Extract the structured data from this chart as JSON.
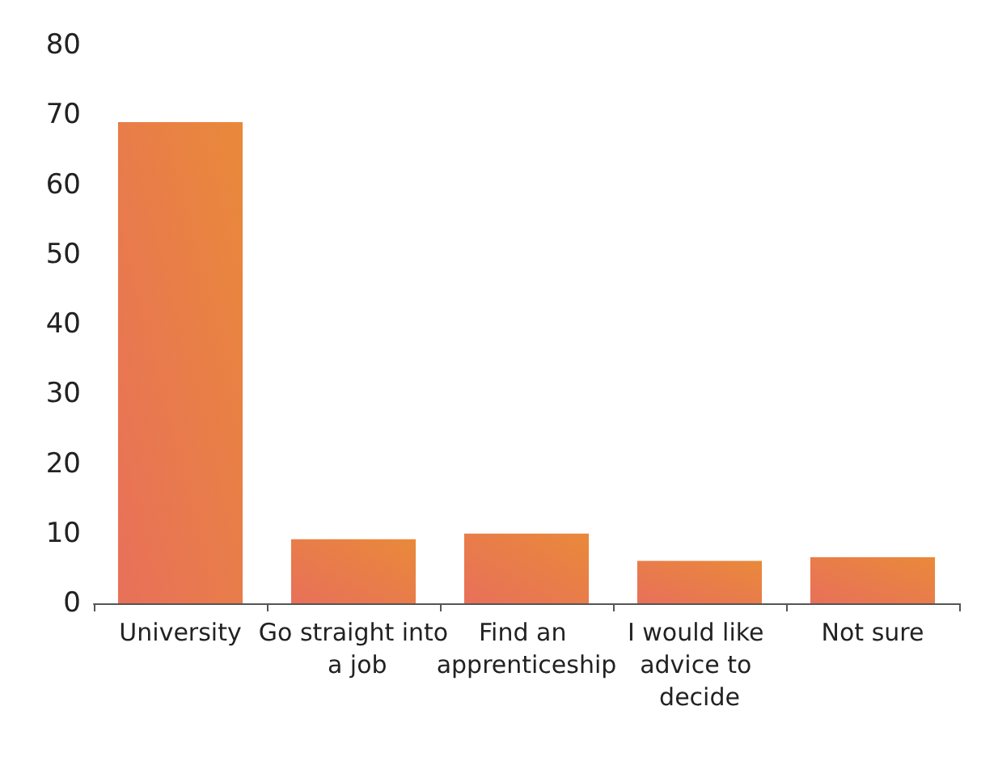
{
  "chart_data": {
    "type": "bar",
    "categories": [
      "University",
      "Go straight into a job",
      "Find an apprenticeship",
      "I would like advice to decide",
      "Not sure"
    ],
    "values": [
      69,
      9.2,
      10,
      6.1,
      6.6
    ],
    "color": "#e9893a",
    "ylim": [
      0,
      80
    ],
    "yticks": [
      0,
      10,
      20,
      30,
      40,
      50,
      60,
      70,
      80
    ],
    "grid": false
  }
}
